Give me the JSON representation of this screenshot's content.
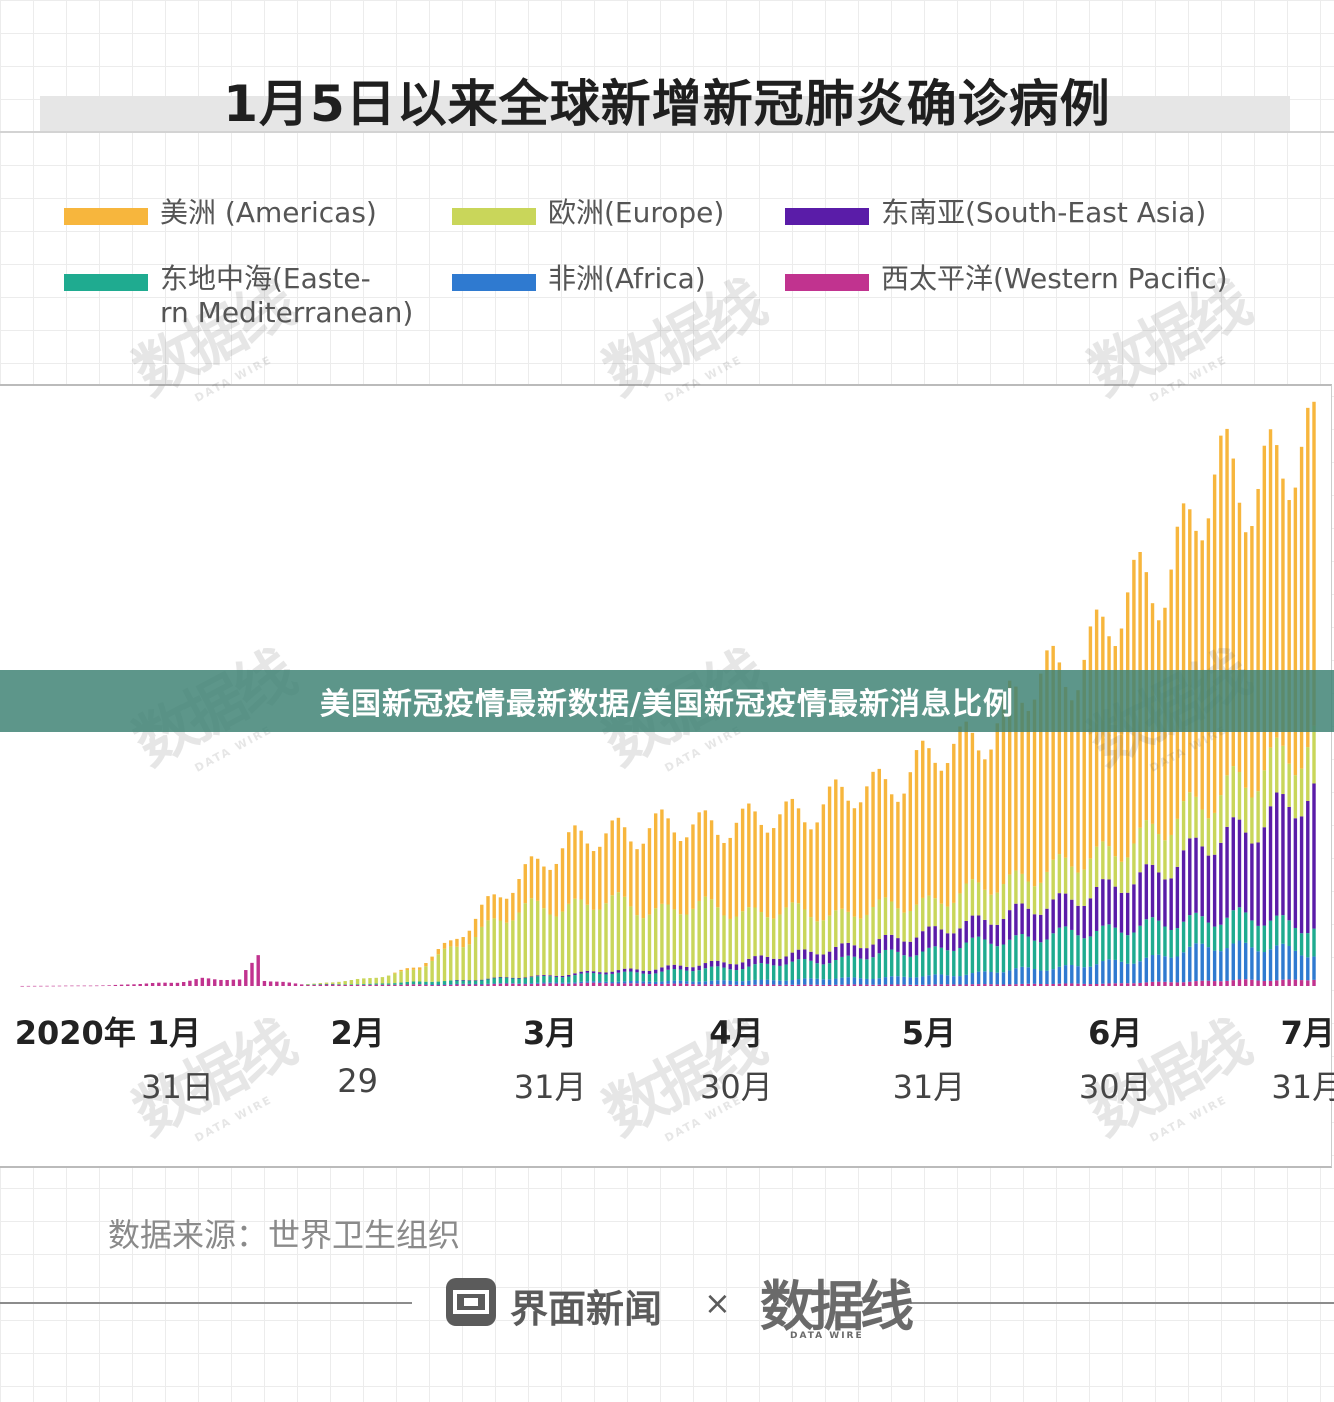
{
  "chart_data": {
    "type": "bar",
    "stacked": true,
    "title": "1月5日以来全球新增新冠肺炎确诊病例",
    "xlabel": "",
    "ylabel": "",
    "grid": false,
    "legend_position": "top",
    "x_range": [
      "2020-01-05",
      "2020-08-01"
    ],
    "tick_labels": [
      {
        "month": "2020年 1月",
        "day": "31日",
        "date": "2020-01-31"
      },
      {
        "month": "2月",
        "day": "29",
        "date": "2020-02-29"
      },
      {
        "month": "3月",
        "day": "31月",
        "date": "2020-03-31"
      },
      {
        "month": "4月",
        "day": "30月",
        "date": "2020-04-30"
      },
      {
        "month": "5月",
        "day": "31月",
        "date": "2020-05-31"
      },
      {
        "month": "6月",
        "day": "30月",
        "date": "2020-06-30"
      },
      {
        "month": "7月",
        "day": "31月",
        "date": "2020-07-31"
      }
    ],
    "series": [
      {
        "key": "western_pacific",
        "name": "西太平洋(Western Pacific)",
        "color": "#c1338f"
      },
      {
        "key": "africa",
        "name": "非洲(Africa)",
        "color": "#2f7ad0"
      },
      {
        "key": "east_med",
        "name": "东地中海(Easte-\nrn Mediterranean)",
        "color": "#1fab90"
      },
      {
        "key": "se_asia",
        "name": "东南亚(South-East Asia)",
        "color": "#5a1ca8"
      },
      {
        "key": "europe",
        "name": "欧洲(Europe)",
        "color": "#c9d65a"
      },
      {
        "key": "americas",
        "name": "美洲 (Americas)",
        "color": "#f7b63d"
      }
    ],
    "legend_order": [
      "americas",
      "europe",
      "se_asia",
      "east_med",
      "africa",
      "western_pacific"
    ],
    "anchors": {
      "western_pacific": [
        [
          "2020-01-05",
          0
        ],
        [
          "2020-01-20",
          300
        ],
        [
          "2020-01-31",
          1900
        ],
        [
          "2020-02-04",
          3500
        ],
        [
          "2020-02-10",
          2800
        ],
        [
          "2020-02-13",
          15000
        ],
        [
          "2020-02-14",
          3000
        ],
        [
          "2020-02-20",
          800
        ],
        [
          "2020-03-01",
          550
        ],
        [
          "2020-03-20",
          900
        ],
        [
          "2020-04-10",
          1400
        ],
        [
          "2020-05-01",
          600
        ],
        [
          "2020-06-01",
          700
        ],
        [
          "2020-06-30",
          1200
        ],
        [
          "2020-07-15",
          2500
        ],
        [
          "2020-08-01",
          3200
        ]
      ],
      "africa": [
        [
          "2020-01-05",
          0
        ],
        [
          "2020-03-10",
          0
        ],
        [
          "2020-03-25",
          300
        ],
        [
          "2020-04-15",
          1000
        ],
        [
          "2020-05-01",
          2000
        ],
        [
          "2020-05-31",
          4000
        ],
        [
          "2020-06-30",
          10000
        ],
        [
          "2020-07-15",
          16000
        ],
        [
          "2020-07-20",
          18000
        ],
        [
          "2020-08-01",
          12000
        ]
      ],
      "east_med": [
        [
          "2020-01-05",
          0
        ],
        [
          "2020-02-20",
          0
        ],
        [
          "2020-03-01",
          400
        ],
        [
          "2020-03-20",
          2200
        ],
        [
          "2020-04-05",
          3500
        ],
        [
          "2020-04-20",
          5000
        ],
        [
          "2020-05-15",
          9000
        ],
        [
          "2020-06-10",
          15000
        ],
        [
          "2020-06-30",
          16500
        ],
        [
          "2020-07-15",
          14000
        ],
        [
          "2020-08-01",
          13000
        ]
      ],
      "se_asia": [
        [
          "2020-01-05",
          0
        ],
        [
          "2020-03-15",
          0
        ],
        [
          "2020-03-25",
          100
        ],
        [
          "2020-04-15",
          1500
        ],
        [
          "2020-05-01",
          3000
        ],
        [
          "2020-05-20",
          6000
        ],
        [
          "2020-06-10",
          11000
        ],
        [
          "2020-06-30",
          20000
        ],
        [
          "2020-07-15",
          35000
        ],
        [
          "2020-08-01",
          62000
        ]
      ],
      "europe": [
        [
          "2020-01-05",
          0
        ],
        [
          "2020-02-20",
          0
        ],
        [
          "2020-02-25",
          800
        ],
        [
          "2020-03-10",
          6000
        ],
        [
          "2020-03-20",
          25000
        ],
        [
          "2020-03-31",
          35000
        ],
        [
          "2020-04-10",
          32000
        ],
        [
          "2020-04-30",
          25000
        ],
        [
          "2020-05-15",
          17000
        ],
        [
          "2020-05-31",
          15000
        ],
        [
          "2020-06-15",
          16000
        ],
        [
          "2020-06-30",
          18000
        ],
        [
          "2020-07-15",
          22000
        ],
        [
          "2020-08-01",
          26000
        ]
      ],
      "americas": [
        [
          "2020-01-05",
          0
        ],
        [
          "2020-03-05",
          0
        ],
        [
          "2020-03-15",
          3000
        ],
        [
          "2020-03-25",
          15000
        ],
        [
          "2020-04-05",
          32000
        ],
        [
          "2020-04-20",
          40000
        ],
        [
          "2020-05-01",
          42000
        ],
        [
          "2020-05-20",
          58000
        ],
        [
          "2020-06-05",
          72000
        ],
        [
          "2020-06-30",
          110000
        ],
        [
          "2020-07-15",
          145000
        ],
        [
          "2020-07-24",
          150000
        ],
        [
          "2020-08-01",
          135000
        ]
      ]
    },
    "y_max": 280000,
    "peak_total": 265000
  },
  "banner": {
    "text": "美国新冠疫情最新数据/美国新冠疫情最新消息比例"
  },
  "footer": {
    "source": "数据来源：世界卫生组织",
    "logo_left_text": "界面新闻",
    "times_sign": "×",
    "logo_right_text": "数据线",
    "logo_right_sub": "DATA WIRE"
  },
  "watermark": {
    "main": "数据线",
    "sub": "DATA WIRE"
  },
  "colors": {
    "accent_banner": "#3e8273"
  }
}
